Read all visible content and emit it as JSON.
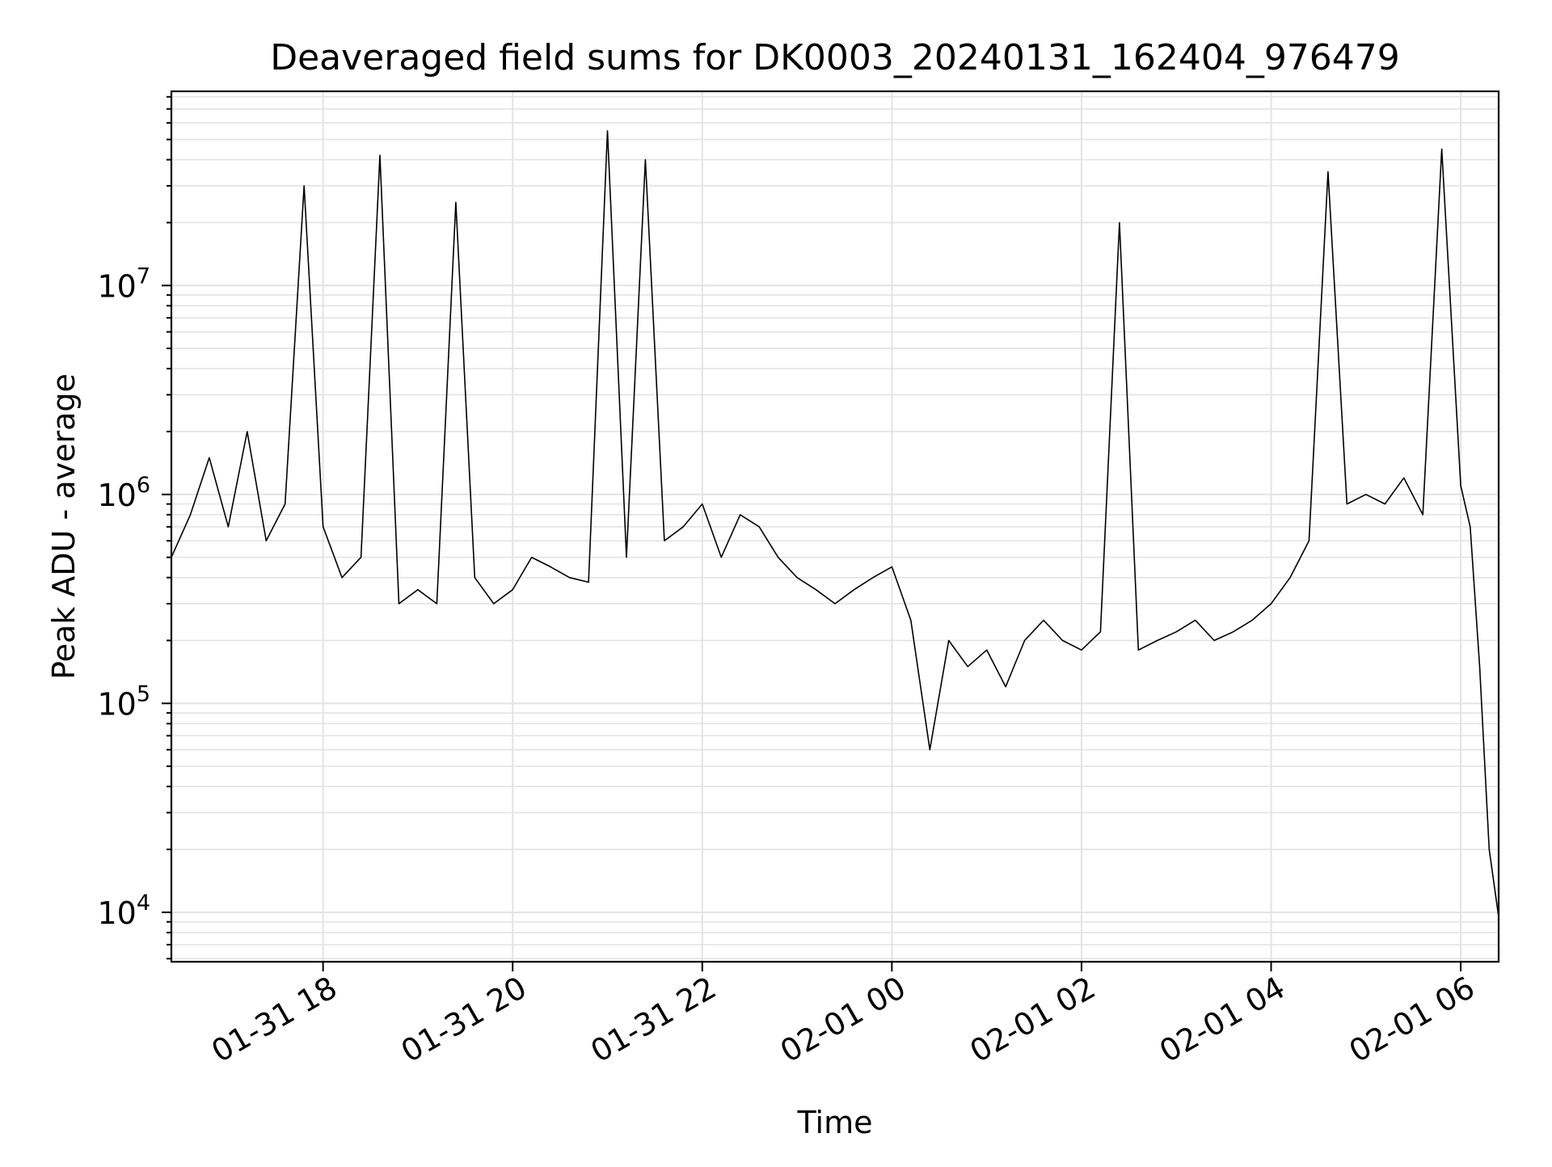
{
  "chart_data": {
    "type": "line",
    "title": "Deaveraged field sums for DK0003_20240131_162404_976479",
    "xlabel": "Time",
    "ylabel": "Peak ADU - average",
    "y_scale": "log",
    "ylim": [
      5800,
      85000000
    ],
    "xlim": [
      "2024-01-31 16:24",
      "2024-02-01 06:24"
    ],
    "x_ticks": [
      {
        "time": "2024-01-31 18:00",
        "label": "01-31 18"
      },
      {
        "time": "2024-01-31 20:00",
        "label": "01-31 20"
      },
      {
        "time": "2024-01-31 22:00",
        "label": "01-31 22"
      },
      {
        "time": "2024-02-01 00:00",
        "label": "02-01 00"
      },
      {
        "time": "2024-02-01 02:00",
        "label": "02-01 02"
      },
      {
        "time": "2024-02-01 04:00",
        "label": "02-01 04"
      },
      {
        "time": "2024-02-01 06:00",
        "label": "02-01 06"
      }
    ],
    "y_ticks": [
      {
        "value": 10000,
        "base": "10",
        "exp": "4"
      },
      {
        "value": 100000,
        "base": "10",
        "exp": "5"
      },
      {
        "value": 1000000,
        "base": "10",
        "exp": "6"
      },
      {
        "value": 10000000,
        "base": "10",
        "exp": "7"
      }
    ],
    "grid": true,
    "legend": "none",
    "colors": {
      "series": "#000000",
      "grid": "#e3e3e3",
      "axes": "#000000",
      "background": "#ffffff"
    },
    "series": [
      {
        "x": [
          "2024-01-31 16:24",
          "2024-01-31 16:36",
          "2024-01-31 16:48",
          "2024-01-31 17:00",
          "2024-01-31 17:12",
          "2024-01-31 17:24",
          "2024-01-31 17:36",
          "2024-01-31 17:48",
          "2024-01-31 18:00",
          "2024-01-31 18:12",
          "2024-01-31 18:24",
          "2024-01-31 18:36",
          "2024-01-31 18:48",
          "2024-01-31 19:00",
          "2024-01-31 19:12",
          "2024-01-31 19:24",
          "2024-01-31 19:36",
          "2024-01-31 19:48",
          "2024-01-31 20:00",
          "2024-01-31 20:12",
          "2024-01-31 20:24",
          "2024-01-31 20:36",
          "2024-01-31 20:48",
          "2024-01-31 21:00",
          "2024-01-31 21:12",
          "2024-01-31 21:24",
          "2024-01-31 21:36",
          "2024-01-31 21:48",
          "2024-01-31 22:00",
          "2024-01-31 22:12",
          "2024-01-31 22:24",
          "2024-01-31 22:36",
          "2024-01-31 22:48",
          "2024-01-31 23:00",
          "2024-01-31 23:12",
          "2024-01-31 23:24",
          "2024-01-31 23:36",
          "2024-01-31 23:48",
          "2024-02-01 00:00",
          "2024-02-01 00:12",
          "2024-02-01 00:24",
          "2024-02-01 00:36",
          "2024-02-01 00:48",
          "2024-02-01 01:00",
          "2024-02-01 01:12",
          "2024-02-01 01:24",
          "2024-02-01 01:36",
          "2024-02-01 01:48",
          "2024-02-01 02:00",
          "2024-02-01 02:12",
          "2024-02-01 02:24",
          "2024-02-01 02:36",
          "2024-02-01 02:48",
          "2024-02-01 03:00",
          "2024-02-01 03:12",
          "2024-02-01 03:24",
          "2024-02-01 03:36",
          "2024-02-01 03:48",
          "2024-02-01 04:00",
          "2024-02-01 04:12",
          "2024-02-01 04:24",
          "2024-02-01 04:36",
          "2024-02-01 04:48",
          "2024-02-01 05:00",
          "2024-02-01 05:12",
          "2024-02-01 05:24",
          "2024-02-01 05:36",
          "2024-02-01 05:48",
          "2024-02-01 06:00",
          "2024-02-01 06:06",
          "2024-02-01 06:12",
          "2024-02-01 06:18",
          "2024-02-01 06:24"
        ],
        "y": [
          500000,
          800000,
          1500000,
          700000,
          2000000,
          600000,
          900000,
          30000000,
          700000,
          400000,
          500000,
          42000000,
          300000,
          350000,
          300000,
          25000000,
          400000,
          300000,
          350000,
          500000,
          450000,
          400000,
          380000,
          55000000,
          500000,
          40000000,
          600000,
          700000,
          900000,
          500000,
          800000,
          700000,
          500000,
          400000,
          350000,
          300000,
          350000,
          400000,
          450000,
          250000,
          60000,
          200000,
          150000,
          180000,
          120000,
          200000,
          250000,
          200000,
          180000,
          220000,
          20000000,
          180000,
          200000,
          220000,
          250000,
          200000,
          220000,
          250000,
          300000,
          400000,
          600000,
          35000000,
          900000,
          1000000,
          900000,
          1200000,
          800000,
          45000000,
          1100000,
          700000,
          150000,
          20000,
          9500
        ]
      }
    ]
  }
}
